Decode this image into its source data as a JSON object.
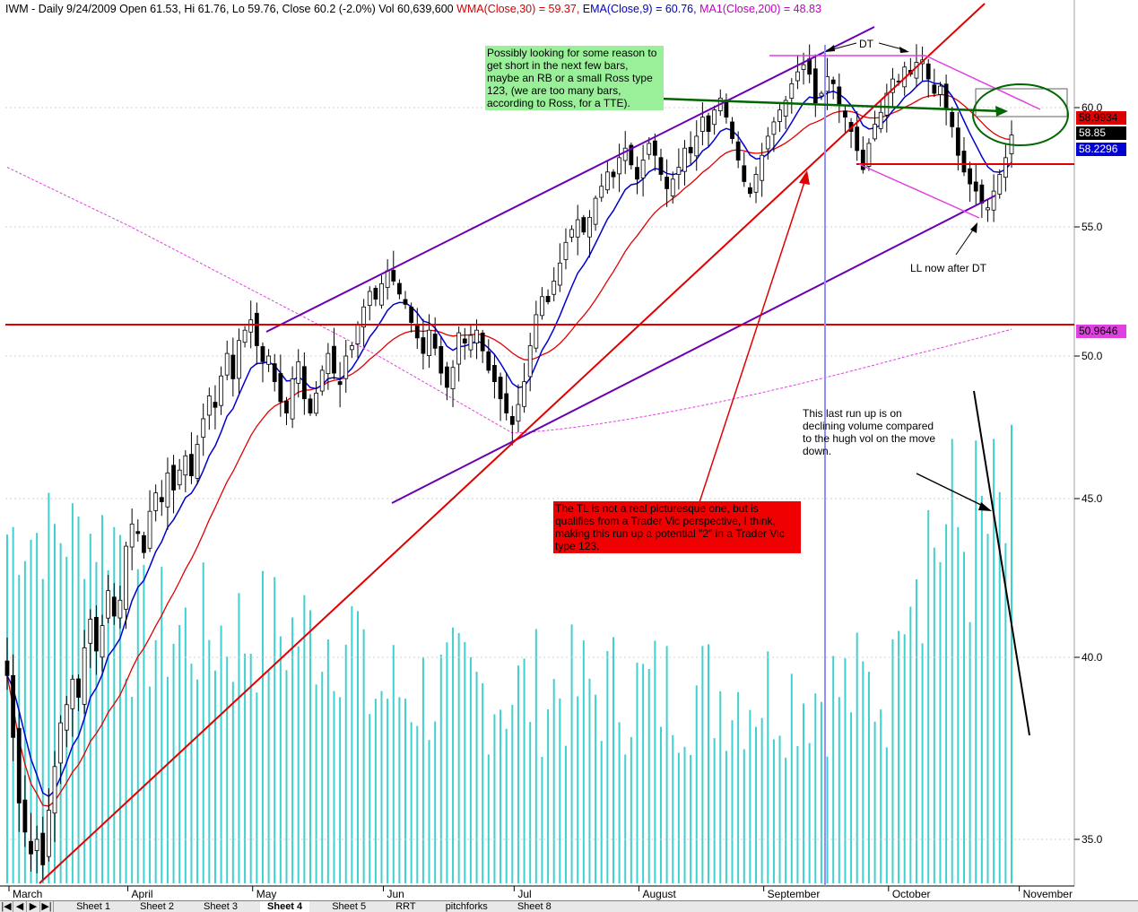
{
  "header": {
    "symbol_info": "IWM - Daily 9/24/2009 Open 61.53, Hi 61.76, Lo 59.76, Close 60.2 (-2.0%) Vol 60,639,600",
    "wma": "WMA(Close,30) = 59.37,",
    "ema": "EMA(Close,9) = 60.76,",
    "ma": "MA1(Close,200) = 48.83"
  },
  "colors": {
    "up_candle": "#ffffff",
    "down_candle": "#000000",
    "volume": "#40d0d0",
    "wma": "#e00000",
    "ema": "#0000d0",
    "ma200": "#e040e0",
    "trendline_purple": "#6600aa",
    "trendline_red": "#e00000"
  },
  "annotations": {
    "green_note": "Possibly looking for some reason to get short in the next few bars, maybe an RB or a small Ross type 123, (we are too many bars, according to Ross, for a TTE).",
    "red_note": "The TL is not a real picturesque one, but is qualifies from a Trader Vic perspective, I think, making this run up a potential \"2\" in a Trader Vic type 123.",
    "volume_note": "This last run up is on declining volume compared to the hugh vol on the move down.",
    "ll_note": "LL now after DT",
    "dt_label": "DT"
  },
  "price_tags": {
    "wma": "58.9934",
    "close": "58.85",
    "ema": "58.2296",
    "level": "50.9646"
  },
  "tabs": {
    "nav": [
      "|◀",
      "◀",
      "▶",
      "▶|"
    ],
    "sheets": [
      "Sheet 1",
      "Sheet 2",
      "Sheet 3",
      "Sheet 4",
      "Sheet 5",
      "RRT",
      "pitchforks",
      "Sheet 8"
    ],
    "active": "Sheet 4"
  },
  "chart_data": {
    "type": "candlestick",
    "title": "IWM - Daily",
    "yticks": [
      35.0,
      40.0,
      45.0,
      50.0,
      55.0,
      60.0
    ],
    "ytick_labels": [
      "35.0",
      "40.0",
      "45.0",
      "50.0",
      "55.0",
      "60.0"
    ],
    "ylim": [
      33.5,
      64.5
    ],
    "months": [
      "March",
      "April",
      "May",
      "Jun",
      "Jul",
      "August",
      "September",
      "October",
      "November"
    ],
    "month_start_bar": [
      0,
      20,
      41,
      63,
      85,
      106,
      127,
      148,
      170
    ],
    "horizontal_level": 50.9646,
    "close": [
      39.5,
      37.8,
      36.0,
      35.2,
      34.6,
      35.0,
      34.3,
      35.8,
      37.0,
      38.2,
      38.7,
      39.4,
      38.9,
      40.3,
      41.2,
      40.2,
      41.0,
      42.1,
      41.3,
      41.8,
      43.5,
      44.2,
      43.9,
      43.3,
      44.6,
      45.2,
      44.9,
      45.9,
      45.3,
      46.0,
      46.5,
      45.8,
      46.9,
      47.8,
      48.6,
      48.2,
      49.3,
      50.1,
      49.2,
      50.6,
      51.0,
      51.4,
      50.4,
      49.8,
      50.0,
      49.1,
      48.4,
      48.0,
      49.2,
      49.8,
      48.5,
      48.0,
      48.7,
      49.5,
      50.1,
      49.4,
      49.0,
      50.0,
      50.4,
      51.2,
      51.9,
      52.5,
      52.2,
      52.8,
      53.3,
      52.9,
      52.4,
      52.0,
      51.3,
      50.7,
      50.1,
      51.0,
      50.3,
      49.4,
      48.9,
      49.6,
      50.9,
      50.5,
      50.8,
      51.0,
      50.2,
      49.5,
      49.1,
      48.5,
      48.0,
      47.6,
      48.3,
      49.1,
      50.4,
      51.6,
      52.3,
      52.1,
      52.9,
      53.6,
      54.4,
      54.9,
      55.3,
      54.8,
      55.4,
      56.2,
      56.7,
      57.3,
      57.1,
      57.9,
      58.3,
      57.6,
      57.0,
      57.8,
      58.5,
      58.0,
      57.2,
      56.6,
      57.0,
      57.5,
      58.3,
      58.1,
      58.8,
      59.6,
      59.0,
      59.9,
      60.4,
      59.6,
      58.7,
      57.8,
      56.9,
      56.4,
      57.2,
      58.0,
      58.8,
      59.4,
      59.9,
      60.3,
      61.0,
      61.5,
      61.8,
      61.4,
      60.2,
      60.6,
      61.3,
      61.0,
      60.1,
      59.6,
      59.0,
      58.2,
      57.4,
      58.5,
      59.3,
      59.8,
      60.6,
      61.2,
      61.1,
      61.7,
      61.4,
      61.9,
      62.0,
      61.2,
      60.6,
      60.9,
      60.0,
      59.2,
      58.0,
      57.3,
      56.8,
      56.5,
      56.0,
      55.8,
      56.5,
      57.2,
      57.9,
      58.85
    ]
  }
}
